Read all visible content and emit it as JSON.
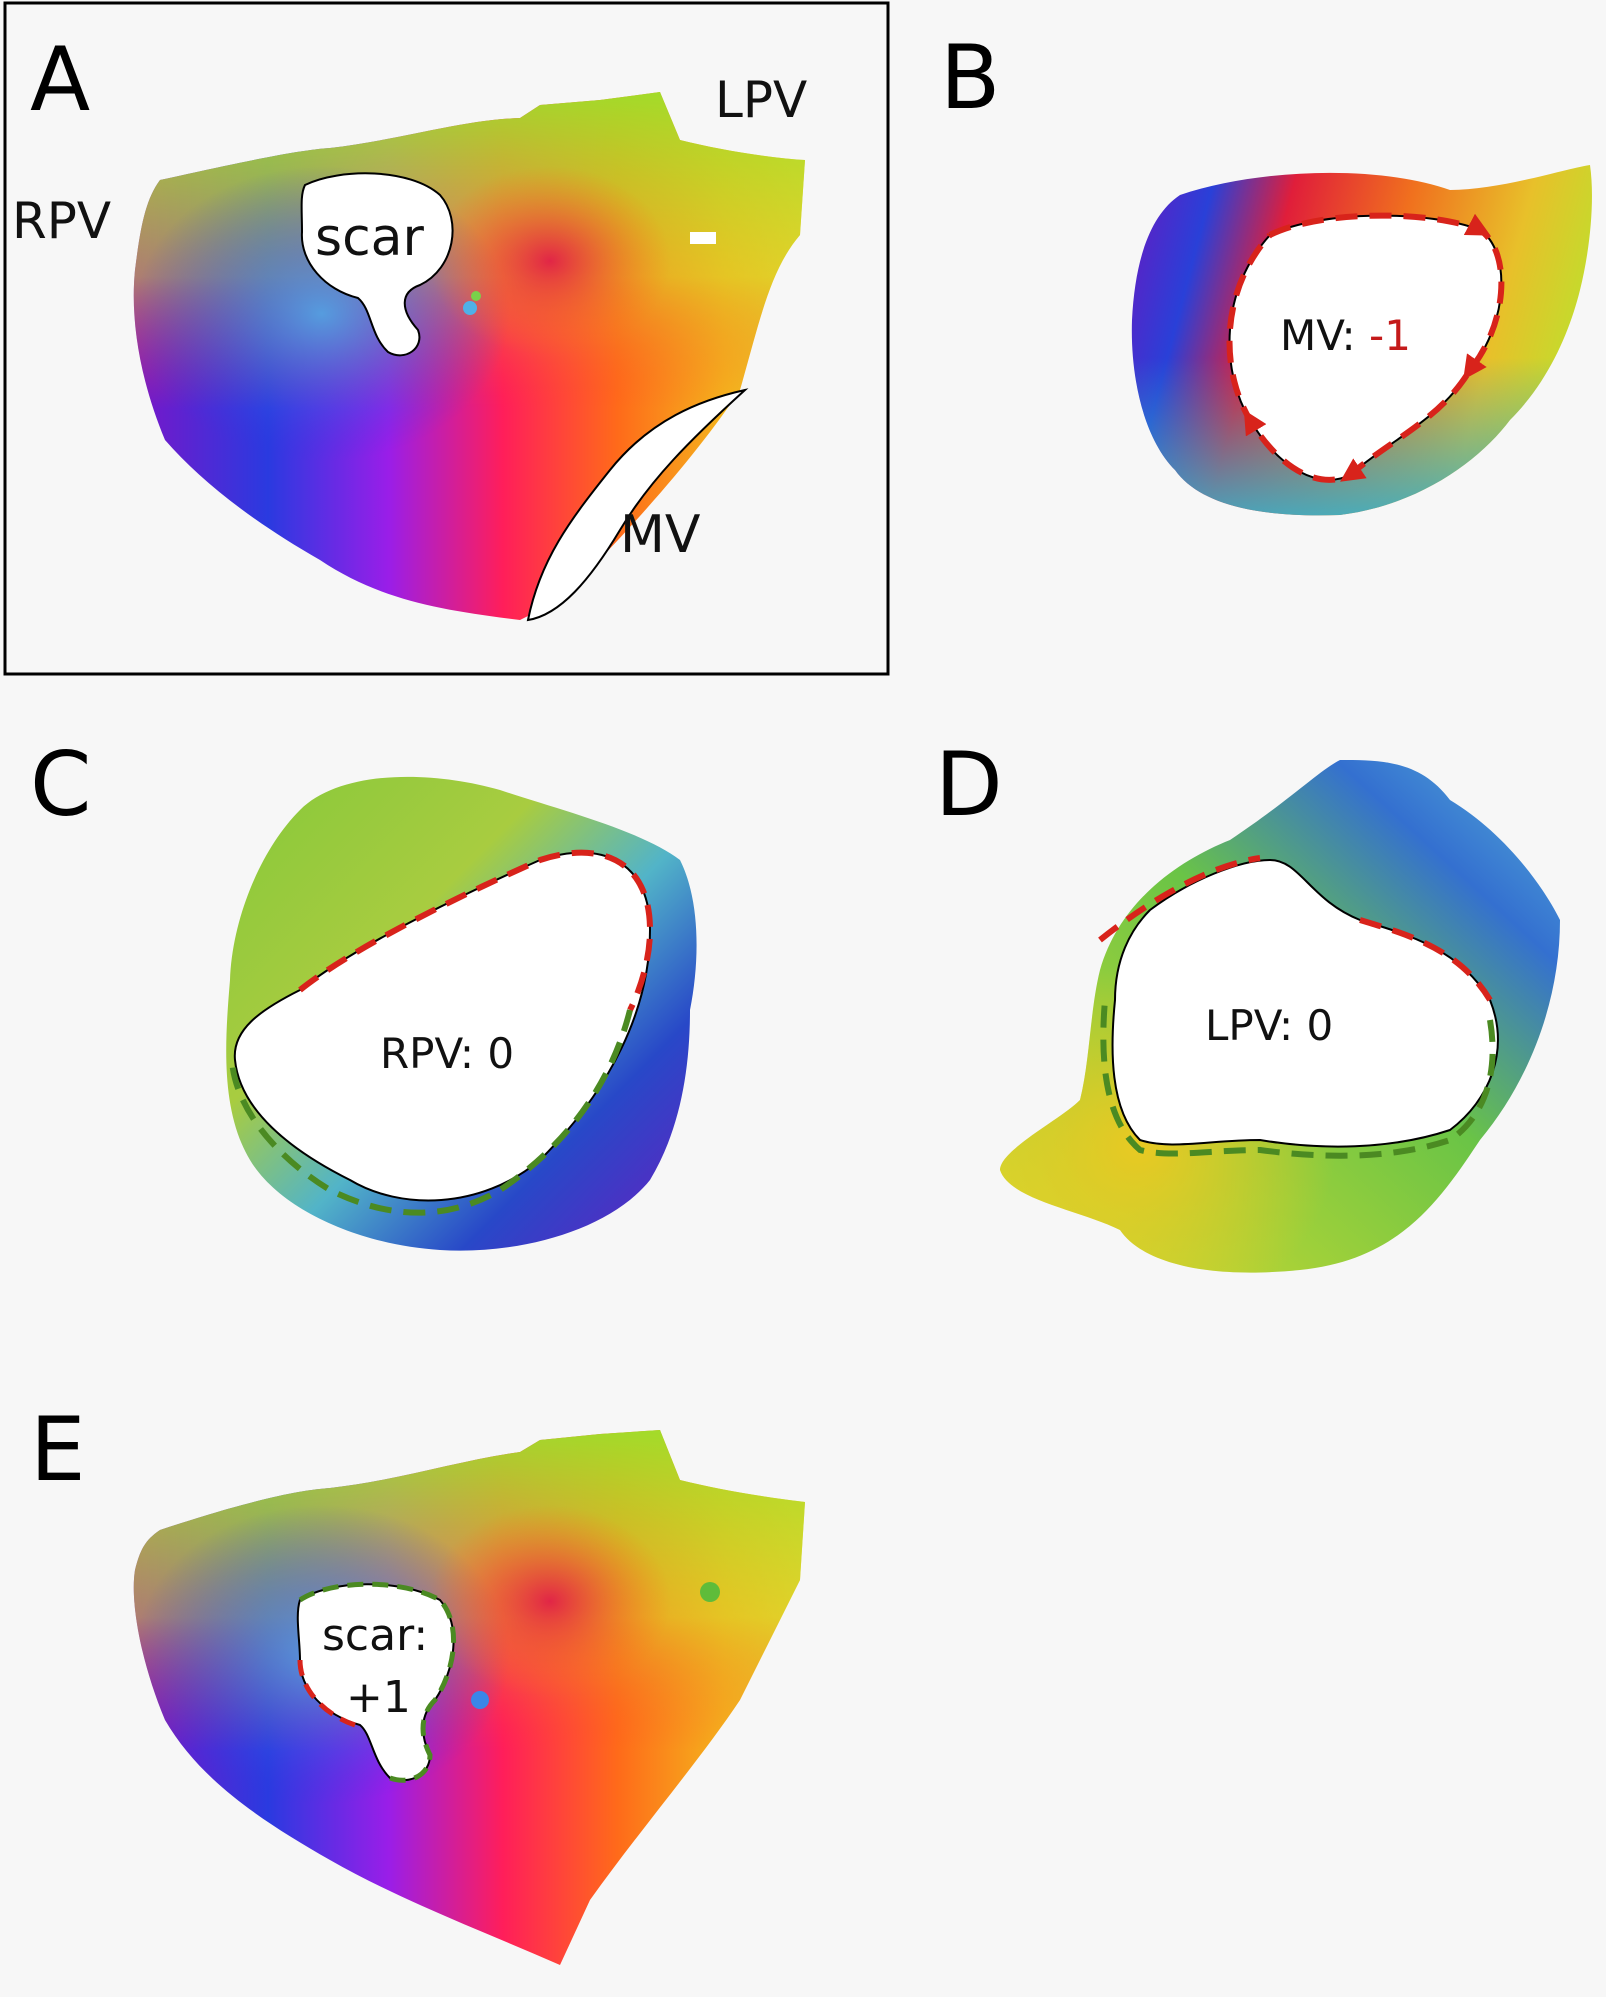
{
  "panels": {
    "A": {
      "letter": "A",
      "rpv": "RPV",
      "lpv": "LPV",
      "scar": "scar",
      "mv": "MV"
    },
    "B": {
      "letter": "B",
      "label": "MV: ",
      "value": "-1"
    },
    "C": {
      "letter": "C",
      "label": "RPV: 0"
    },
    "D": {
      "letter": "D",
      "label": "LPV: 0"
    },
    "E": {
      "letter": "E",
      "label": "scar:",
      "value": "+1"
    }
  },
  "colors": {
    "negative": "#c41a1a",
    "positive": "#4ea32a",
    "arrow_red": "#d8231b",
    "arrow_green": "#4b8a22"
  }
}
